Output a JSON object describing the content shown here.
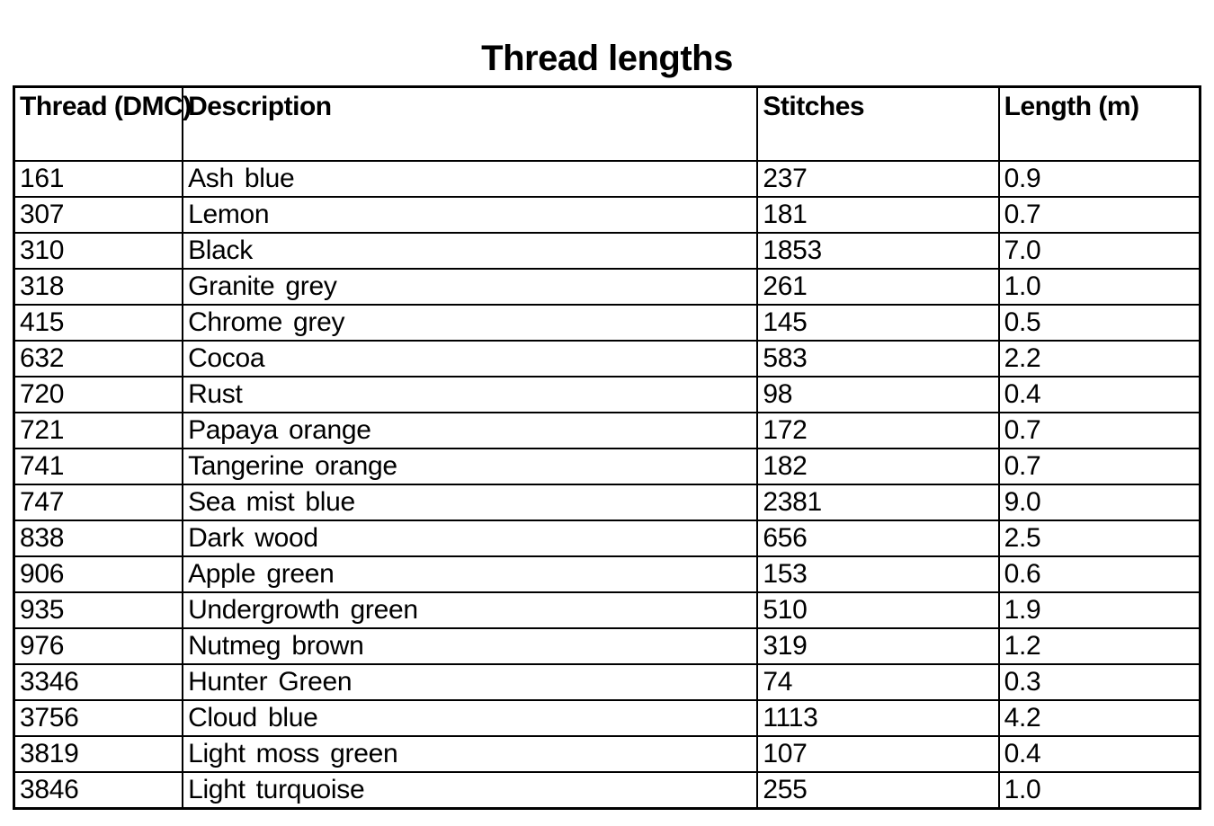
{
  "title": "Thread lengths",
  "colors": {
    "background": "#ffffff",
    "text": "#000000",
    "border": "#000000"
  },
  "table": {
    "columns": [
      "Thread (DMC)",
      "Description",
      "Stitches",
      "Length (m)"
    ],
    "rows": [
      {
        "thread": "161",
        "description": "Ash blue",
        "stitches": "237",
        "length": "0.9"
      },
      {
        "thread": "307",
        "description": "Lemon",
        "stitches": "181",
        "length": "0.7"
      },
      {
        "thread": "310",
        "description": "Black",
        "stitches": "1853",
        "length": "7.0"
      },
      {
        "thread": "318",
        "description": "Granite grey",
        "stitches": "261",
        "length": "1.0"
      },
      {
        "thread": "415",
        "description": "Chrome grey",
        "stitches": "145",
        "length": "0.5"
      },
      {
        "thread": "632",
        "description": "Cocoa",
        "stitches": "583",
        "length": "2.2"
      },
      {
        "thread": "720",
        "description": "Rust",
        "stitches": "98",
        "length": "0.4"
      },
      {
        "thread": "721",
        "description": "Papaya orange",
        "stitches": "172",
        "length": "0.7"
      },
      {
        "thread": "741",
        "description": "Tangerine orange",
        "stitches": "182",
        "length": "0.7"
      },
      {
        "thread": "747",
        "description": "Sea mist blue",
        "stitches": "2381",
        "length": "9.0"
      },
      {
        "thread": "838",
        "description": "Dark wood",
        "stitches": "656",
        "length": "2.5"
      },
      {
        "thread": "906",
        "description": "Apple green",
        "stitches": "153",
        "length": "0.6"
      },
      {
        "thread": "935",
        "description": "Undergrowth green",
        "stitches": "510",
        "length": "1.9"
      },
      {
        "thread": "976",
        "description": "Nutmeg brown",
        "stitches": "319",
        "length": "1.2"
      },
      {
        "thread": "3346",
        "description": "Hunter Green",
        "stitches": "74",
        "length": "0.3"
      },
      {
        "thread": "3756",
        "description": "Cloud blue",
        "stitches": "1113",
        "length": "4.2"
      },
      {
        "thread": "3819",
        "description": "Light moss green",
        "stitches": "107",
        "length": "0.4"
      },
      {
        "thread": "3846",
        "description": "Light turquoise",
        "stitches": "255",
        "length": "1.0"
      }
    ]
  }
}
